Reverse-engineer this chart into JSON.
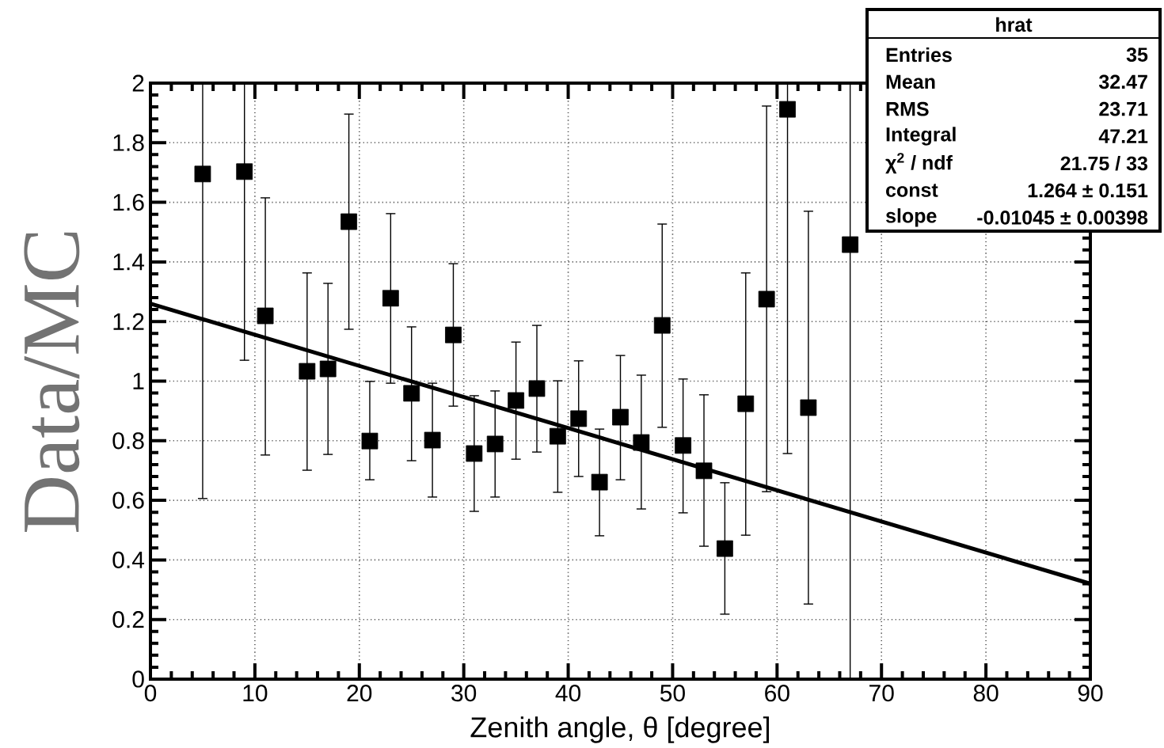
{
  "chart_data": {
    "type": "scatter",
    "xlabel": "Zenith angle, θ [degree]",
    "ylabel": "Data/MC",
    "x": [
      5,
      9,
      11,
      15,
      17,
      19,
      21,
      23,
      25,
      27,
      29,
      31,
      33,
      35,
      37,
      39,
      41,
      43,
      45,
      47,
      49,
      51,
      53,
      55,
      57,
      59,
      61,
      63,
      67
    ],
    "series": [
      {
        "color": "#000000",
        "marker": "square",
        "values": [
          1.695,
          1.703,
          1.219,
          1.033,
          1.041,
          1.535,
          0.799,
          1.278,
          0.959,
          0.802,
          1.155,
          0.757,
          0.789,
          0.935,
          0.975,
          0.815,
          0.874,
          0.661,
          0.879,
          0.794,
          1.187,
          0.784,
          0.699,
          0.438,
          0.924,
          1.275,
          1.912,
          0.911,
          1.458
        ],
        "errors": [
          [
            0.606,
            2
          ],
          [
            1.07,
            2
          ],
          [
            0.752,
            1.615
          ],
          [
            0.701,
            1.363
          ],
          [
            0.754,
            1.328
          ],
          [
            1.174,
            1.896
          ],
          [
            0.669,
            0.999
          ],
          [
            0.993,
            1.562
          ],
          [
            0.733,
            1.182
          ],
          [
            0.611,
            0.993
          ],
          [
            0.916,
            1.394
          ],
          [
            0.563,
            0.951
          ],
          [
            0.611,
            0.967
          ],
          [
            0.738,
            1.131
          ],
          [
            0.762,
            1.187
          ],
          [
            0.627,
            1.001
          ],
          [
            0.68,
            1.068
          ],
          [
            0.481,
            0.839
          ],
          [
            0.669,
            1.086
          ],
          [
            0.571,
            1.02
          ],
          [
            0.845,
            1.527
          ],
          [
            0.558,
            1.007
          ],
          [
            0.446,
            0.954
          ],
          [
            0.218,
            0.659
          ],
          [
            0.483,
            1.363
          ],
          [
            0.629,
            1.923
          ],
          [
            0.757,
            2
          ],
          [
            0.252,
            1.57
          ],
          [
            0,
            2
          ]
        ]
      },
      {
        "type": "line",
        "color": "#000000",
        "x": [
          0,
          90
        ],
        "values": [
          1.26,
          0.32
        ]
      }
    ],
    "xlim": [
      0,
      90
    ],
    "ylim": [
      0,
      2
    ],
    "xticks": [
      0,
      10,
      20,
      30,
      40,
      50,
      60,
      70,
      80,
      90
    ],
    "yticks": [
      0,
      0.2,
      0.4,
      0.6,
      0.8,
      1,
      1.2,
      1.4,
      1.6,
      1.8,
      2
    ],
    "grid": true,
    "annotations": [
      "hrat",
      "Entries",
      "35",
      "Mean",
      "32.47",
      "RMS",
      "23.71",
      "Integral",
      "47.21",
      "χ$^{2}$ / ndf",
      "21.75 / 33",
      "const",
      "1.264 ± 0.151",
      "slope",
      "-0.01045 ± 0.00398"
    ]
  }
}
